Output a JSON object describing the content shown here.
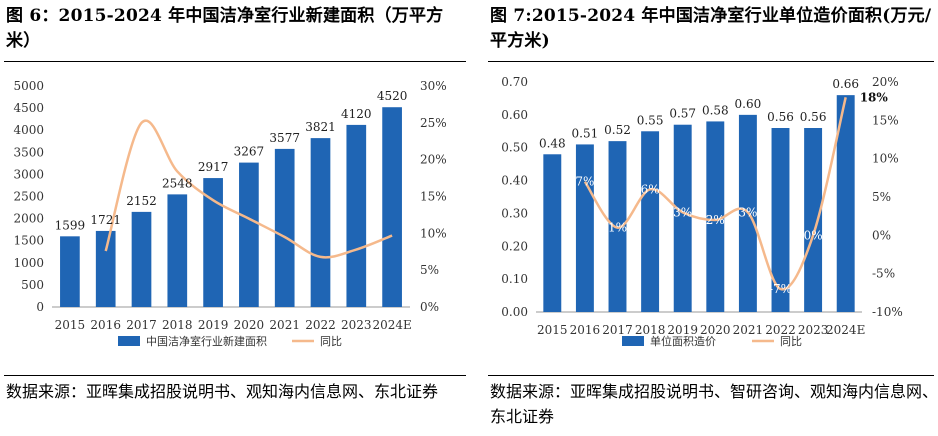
{
  "charts": [
    {
      "title": "图 6：2015-2024 年中国洁净室行业新建面积（万平方米）",
      "source": "数据来源：亚晖集成招股说明书、观知海内信息网、东北证券",
      "chart_data": {
        "type": "bar",
        "categories": [
          "2015",
          "2016",
          "2017",
          "2018",
          "2019",
          "2020",
          "2021",
          "2022",
          "2023",
          "2024E"
        ],
        "series": [
          {
            "name": "中国洁净室行业新建面积",
            "kind": "bar",
            "axis": "left",
            "values": [
              1599,
              1721,
              2152,
              2548,
              2917,
              3267,
              3577,
              3821,
              4120,
              4520
            ],
            "labels": [
              "1599",
              "1721",
              "2152",
              "2548",
              "2917",
              "3267",
              "3577",
              "3821",
              "4120",
              "4520"
            ]
          },
          {
            "name": "同比",
            "kind": "line",
            "axis": "right",
            "values": [
              null,
              7.6,
              25.0,
              18.4,
              14.5,
              12.0,
              9.5,
              6.8,
              7.8,
              9.7
            ],
            "labels": []
          }
        ],
        "ylim_left": [
          0,
          5000
        ],
        "yticks_left": [
          0,
          500,
          1000,
          1500,
          2000,
          2500,
          3000,
          3500,
          4000,
          4500,
          5000
        ],
        "yticklabels_left": [
          "0",
          "500",
          "1000",
          "1500",
          "2000",
          "2500",
          "3000",
          "3500",
          "4000",
          "4500",
          "5000"
        ],
        "ylim_right": [
          0,
          30
        ],
        "yticks_right": [
          0,
          5,
          10,
          15,
          20,
          25,
          30
        ],
        "yticklabels_right": [
          "0%",
          "5%",
          "10%",
          "15%",
          "20%",
          "25%",
          "30%"
        ],
        "legend": [
          "中国洁净室行业新建面积",
          "同比"
        ],
        "colors": {
          "bar": "#1f65b4",
          "line": "#f5b98c"
        }
      }
    },
    {
      "title": "图 7:2015-2024 年中国洁净室行业单位造价面积(万元/平方米)",
      "source": "数据来源：亚晖集成招股说明书、智研咨询、观知海内信息网、东北证券",
      "chart_data": {
        "type": "bar",
        "categories": [
          "2015",
          "2016",
          "2017",
          "2018",
          "2019",
          "2020",
          "2021",
          "2022",
          "2023",
          "2024E"
        ],
        "series": [
          {
            "name": "单位面积造价",
            "kind": "bar",
            "axis": "left",
            "values": [
              0.48,
              0.51,
              0.52,
              0.55,
              0.57,
              0.58,
              0.6,
              0.56,
              0.56,
              0.66
            ],
            "labels": [
              "0.48",
              "0.51",
              "0.52",
              "0.55",
              "0.57",
              "0.58",
              "0.60",
              "0.56",
              "0.56",
              "0.66"
            ]
          },
          {
            "name": "同比",
            "kind": "line",
            "axis": "right",
            "values": [
              null,
              7,
              1,
              6,
              3,
              2,
              3,
              -7,
              0,
              18
            ],
            "labels": [
              "",
              "7%",
              "1%",
              "6%",
              "3%",
              "2%",
              "3%",
              "-7%",
              "0%",
              "18%"
            ]
          }
        ],
        "ylim_left": [
          0,
          0.7
        ],
        "yticks_left": [
          0,
          0.1,
          0.2,
          0.3,
          0.4,
          0.5,
          0.6,
          0.7
        ],
        "yticklabels_left": [
          "0.00",
          "0.10",
          "0.20",
          "0.30",
          "0.40",
          "0.50",
          "0.60",
          "0.70"
        ],
        "ylim_right": [
          -10,
          20
        ],
        "yticks_right": [
          -10,
          -5,
          0,
          5,
          10,
          15,
          20
        ],
        "yticklabels_right": [
          "-10%",
          "-5%",
          "0%",
          "5%",
          "10%",
          "15%",
          "20%"
        ],
        "legend": [
          "单位面积造价",
          "同比"
        ],
        "colors": {
          "bar": "#1f65b4",
          "line": "#f5b98c"
        }
      }
    }
  ]
}
